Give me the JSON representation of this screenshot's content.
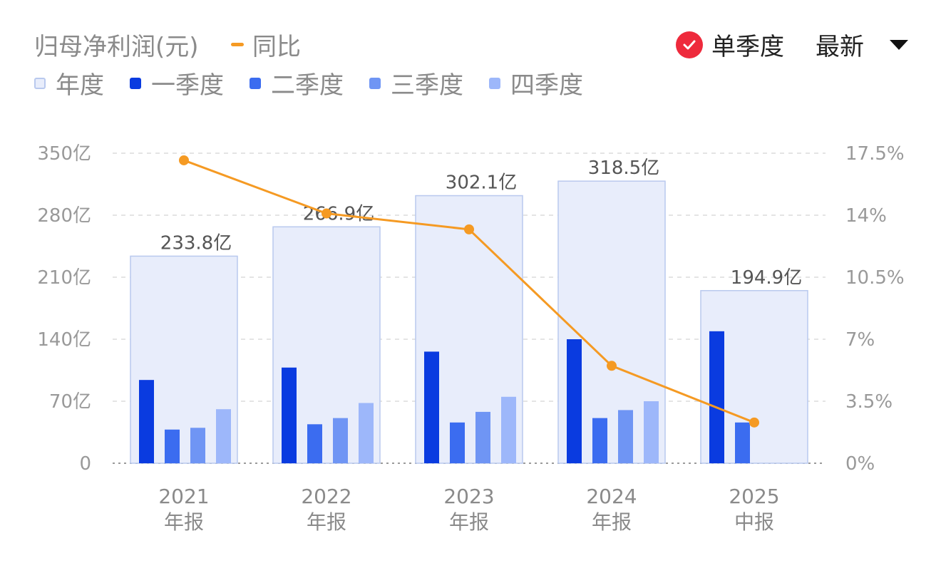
{
  "header": {
    "title": "归母净利润(元)",
    "yoy_label": "同比",
    "quarter_toggle_label": "单季度",
    "dropdown_label": "最新"
  },
  "legend": [
    {
      "label": "年度",
      "color": "#e8edfb",
      "border": "#b9c9ee"
    },
    {
      "label": "一季度",
      "color": "#0a3be0"
    },
    {
      "label": "二季度",
      "color": "#3b6cf0"
    },
    {
      "label": "三季度",
      "color": "#6f95f4"
    },
    {
      "label": "四季度",
      "color": "#9db7fa"
    }
  ],
  "chart_data": {
    "type": "bar",
    "categories": [
      "2021\n年报",
      "2022\n年报",
      "2023\n年报",
      "2024\n年报",
      "2025\n中报"
    ],
    "annual": {
      "name": "年度",
      "values": [
        233.8,
        266.9,
        302.1,
        318.5,
        194.9
      ],
      "labels": [
        "233.8亿",
        "266.9亿",
        "302.1亿",
        "318.5亿",
        "194.9亿"
      ]
    },
    "series": [
      {
        "name": "一季度",
        "values": [
          94,
          108,
          126,
          140,
          149
        ]
      },
      {
        "name": "二季度",
        "values": [
          38,
          44,
          46,
          51,
          46
        ]
      },
      {
        "name": "三季度",
        "values": [
          40,
          51,
          58,
          60,
          null
        ]
      },
      {
        "name": "四季度",
        "values": [
          61,
          68,
          75,
          70,
          null
        ]
      }
    ],
    "yoy": {
      "name": "同比",
      "values": [
        17.1,
        14.1,
        13.2,
        5.5,
        2.3
      ]
    },
    "y_left": {
      "ticks": [
        "0",
        "70亿",
        "140亿",
        "210亿",
        "280亿",
        "350亿"
      ],
      "range": [
        0,
        350
      ]
    },
    "y_right": {
      "ticks": [
        "0%",
        "3.5%",
        "7%",
        "10.5%",
        "14%",
        "17.5%"
      ],
      "range": [
        0,
        17.5
      ]
    },
    "grid": true,
    "colors": {
      "annual_fill": "#e8edfb",
      "annual_border": "#b9c9ee",
      "q1": "#0a3be0",
      "q2": "#3b6cf0",
      "q3": "#6f95f4",
      "q4": "#9db7fa",
      "yoy": "#f59a23"
    }
  }
}
